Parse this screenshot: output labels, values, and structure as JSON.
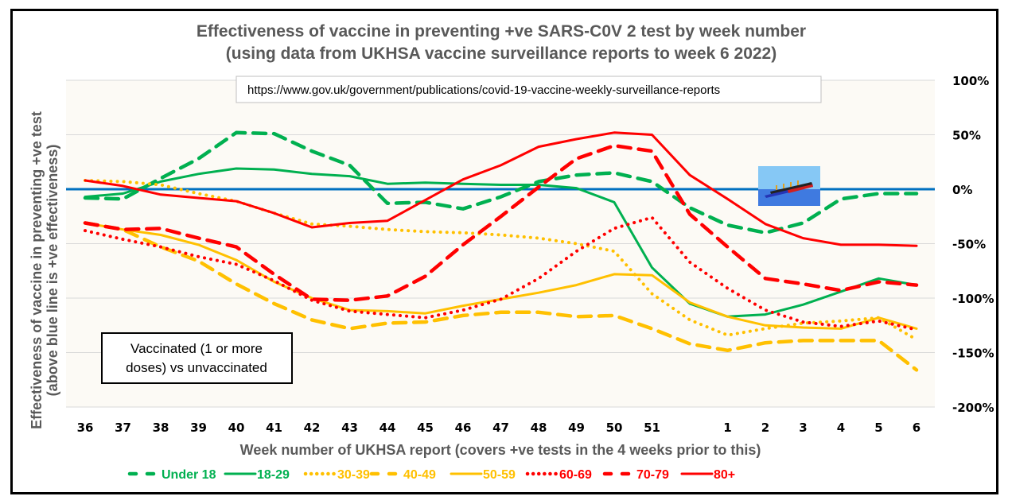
{
  "chart_data": {
    "type": "line",
    "title": "Effectiveness of vaccine in preventing +ve SARS-C0V 2 test by week number",
    "subtitle": "(using data from UKHSA vaccine surveillance reports to week 6 2022)",
    "xlabel": "Week number of UKHSA report (covers +ve tests in the 4 weeks prior to this)",
    "ylabel": "Effectiveness of vaccine in preventing +ve test",
    "ylabel2": "(above blue line is +ve effectiveness)",
    "categories": [
      "36",
      "37",
      "38",
      "39",
      "40",
      "41",
      "42",
      "43",
      "44",
      "45",
      "46",
      "47",
      "48",
      "49",
      "50",
      "51",
      "",
      "1",
      "2",
      "3",
      "4",
      "5",
      "6"
    ],
    "yticks": [
      "100%",
      "50%",
      "0%",
      "-50%",
      "-100%",
      "-150%",
      "-200%"
    ],
    "ylim": [
      -200,
      100
    ],
    "y_axis_position": "right",
    "grid": true,
    "reference_line": {
      "value": 0,
      "color": "#0070C0"
    },
    "legend_position": "bottom",
    "series": [
      {
        "name": "Under 18",
        "color": "#00B050",
        "style": "dashed",
        "values": [
          -8,
          -9,
          10,
          28,
          52,
          51,
          35,
          22,
          -13,
          -12,
          -18,
          -7,
          7,
          13,
          15,
          7,
          -17,
          -33,
          -40,
          -31,
          -9,
          -4,
          -4
        ]
      },
      {
        "name": "18-29",
        "color": "#00B050",
        "style": "solid",
        "values": [
          -7,
          -4,
          7,
          14,
          19,
          18,
          14,
          12,
          5,
          6,
          5,
          4,
          4,
          1,
          -12,
          -72,
          -105,
          -117,
          -115,
          -106,
          -94,
          -82,
          -88
        ]
      },
      {
        "name": "30-39",
        "color": "#FFC000",
        "style": "dotted",
        "values": [
          8,
          7,
          4,
          -4,
          -11,
          -22,
          -32,
          -34,
          -37,
          -39,
          -40,
          -42,
          -45,
          -50,
          -57,
          -96,
          -120,
          -134,
          -128,
          -123,
          -121,
          -118,
          -138
        ]
      },
      {
        "name": "40-49",
        "color": "#FFC000",
        "style": "dashed",
        "values": [
          -31,
          -37,
          -53,
          -66,
          -87,
          -105,
          -120,
          -128,
          -123,
          -122,
          -116,
          -113,
          -113,
          -117,
          -116,
          -128,
          -142,
          -148,
          -141,
          -139,
          -139,
          -139,
          -166
        ]
      },
      {
        "name": "50-59",
        "color": "#FFC000",
        "style": "solid",
        "values": [
          -31,
          -37,
          -42,
          -51,
          -65,
          -85,
          -100,
          -111,
          -112,
          -114,
          -107,
          -101,
          -95,
          -88,
          -78,
          -79,
          -104,
          -117,
          -125,
          -127,
          -128,
          -118,
          -128
        ]
      },
      {
        "name": "60-69",
        "color": "#FF0000",
        "style": "dotted",
        "values": [
          -38,
          -46,
          -53,
          -62,
          -69,
          -84,
          -102,
          -112,
          -115,
          -118,
          -111,
          -101,
          -82,
          -57,
          -36,
          -26,
          -67,
          -91,
          -111,
          -122,
          -126,
          -121,
          -129
        ]
      },
      {
        "name": "70-79",
        "color": "#FF0000",
        "style": "dashed",
        "values": [
          -31,
          -37,
          -36,
          -45,
          -53,
          -78,
          -101,
          -102,
          -98,
          -80,
          -51,
          -25,
          2,
          28,
          40,
          35,
          -23,
          -53,
          -82,
          -87,
          -93,
          -85,
          -88
        ]
      },
      {
        "name": "80+",
        "color": "#FF0000",
        "style": "solid",
        "values": [
          8,
          3,
          -5,
          -8,
          -11,
          -22,
          -35,
          -31,
          -29,
          -10,
          9,
          22,
          39,
          46,
          52,
          50,
          13,
          -9,
          -32,
          -45,
          -51,
          -51,
          -52
        ]
      }
    ],
    "annotations": [
      "https://www.gov.uk/government/publications/covid-19-vaccine-weekly-surveillance-reports",
      "Vaccinated (1 or more doses) vs unvaccinated"
    ],
    "image_annotation": "sinking-ship-icon"
  },
  "url_box": "https://www.gov.uk/government/publications/covid-19-vaccine-weekly-surveillance-reports",
  "note_box": [
    "Vaccinated (1 or more",
    "doses) vs unvaccinated"
  ]
}
